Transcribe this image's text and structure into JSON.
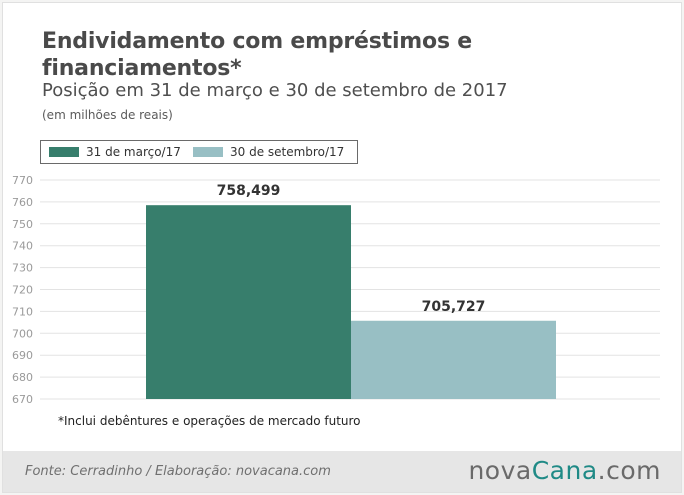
{
  "chart_data": {
    "type": "bar",
    "title": "Endividamento com empréstimos e financiamentos*",
    "subtitle": "Posição em 31 de março e 30 de setembro de 2017",
    "unit_label": "(em milhões de reais)",
    "ylim": [
      670,
      770
    ],
    "yticks": [
      670,
      680,
      690,
      700,
      710,
      720,
      730,
      740,
      750,
      760,
      770
    ],
    "grid": true,
    "legend_position": "top-left",
    "series": [
      {
        "name": "31 de março/17",
        "value": 758.499,
        "label": "758,499",
        "color": "#377e6c"
      },
      {
        "name": "30 de setembro/17",
        "value": 705.727,
        "label": "705,727",
        "color": "#98bfc4"
      }
    ]
  },
  "footnote": "*Inclui debêntures e operações de mercado futuro",
  "source": "Fonte:  Cerradinho / Elaboração: novacana.com",
  "logo": {
    "part1": "nova",
    "part2": "Cana",
    "part3": ".com"
  }
}
